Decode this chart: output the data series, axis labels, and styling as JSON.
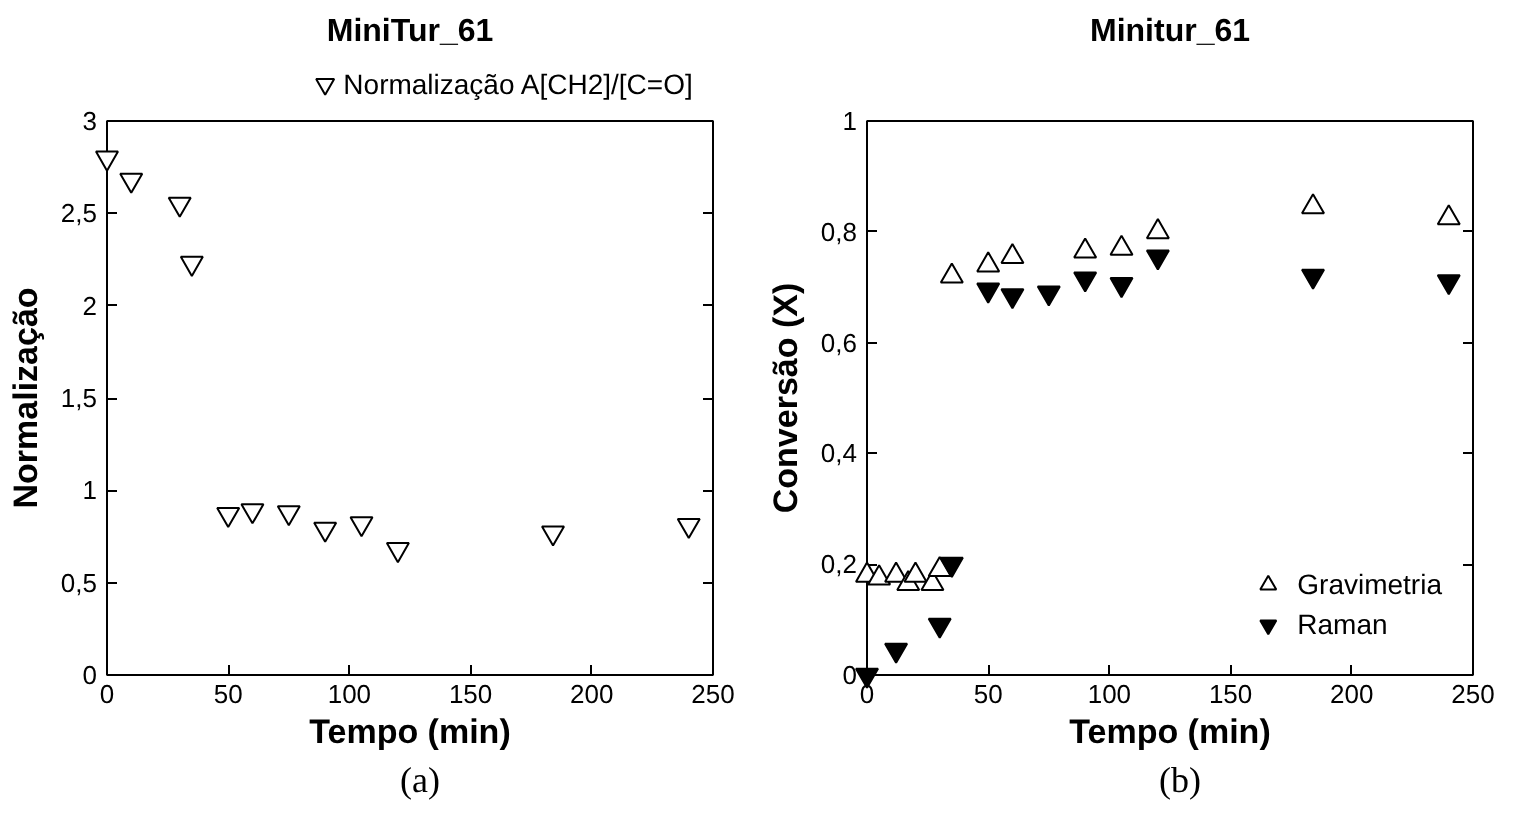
{
  "chart_data": [
    {
      "type": "scatter",
      "title": "MiniTur_61",
      "xlabel": "Tempo (min)",
      "ylabel": "Normalização",
      "annotations": [
        "(a)"
      ],
      "xlim": [
        0,
        250
      ],
      "xticks": [
        0,
        50,
        100,
        150,
        200,
        250
      ],
      "ylim": [
        0,
        3
      ],
      "yticks": [
        {
          "value": 0,
          "label": "0"
        },
        {
          "value": 0.5,
          "label": "0,5"
        },
        {
          "value": 1,
          "label": "1"
        },
        {
          "value": 1.5,
          "label": "1,5"
        },
        {
          "value": 2,
          "label": "2"
        },
        {
          "value": 2.5,
          "label": "2,5"
        },
        {
          "value": 3,
          "label": "3"
        }
      ],
      "grid": false,
      "legend": "top",
      "series": [
        {
          "name": "Normalização A[CH2]/[C=O]",
          "color": "#000000",
          "marker": "triangle_down_open",
          "x": [
            0,
            10,
            30,
            35,
            50,
            60,
            75,
            90,
            105,
            120,
            184,
            240
          ],
          "values": [
            2.8,
            2.68,
            2.55,
            2.23,
            0.87,
            0.89,
            0.88,
            0.79,
            0.82,
            0.68,
            0.77,
            0.81
          ]
        }
      ]
    },
    {
      "type": "scatter",
      "title": "Minitur_61",
      "xlabel": "Tempo (min)",
      "ylabel": "Conversão (X)",
      "annotations": [
        "(b)"
      ],
      "xlim": [
        0,
        250
      ],
      "xticks": [
        0,
        50,
        100,
        150,
        200,
        250
      ],
      "ylim": [
        0,
        1
      ],
      "yticks": [
        {
          "value": 0,
          "label": "0"
        },
        {
          "value": 0.2,
          "label": "0,2"
        },
        {
          "value": 0.4,
          "label": "0,4"
        },
        {
          "value": 0.6,
          "label": "0,6"
        },
        {
          "value": 0.8,
          "label": "0,8"
        },
        {
          "value": 1,
          "label": "1"
        }
      ],
      "grid": false,
      "legend": "bottom right",
      "series": [
        {
          "name": "Gravimetria",
          "color": "#000000",
          "marker": "triangle_open",
          "x": [
            0,
            5,
            12,
            17,
            20,
            27,
            30,
            35,
            50,
            60,
            90,
            105,
            120,
            184,
            240
          ],
          "values": [
            0.18,
            0.175,
            0.18,
            0.165,
            0.18,
            0.165,
            0.19,
            0.72,
            0.74,
            0.755,
            0.765,
            0.77,
            0.8,
            0.845,
            0.825
          ]
        },
        {
          "name": "Raman",
          "color": "#000000",
          "marker": "triangle_down",
          "x": [
            0,
            12,
            30,
            35,
            50,
            60,
            75,
            90,
            105,
            120,
            184,
            240
          ],
          "values": [
            0,
            0.045,
            0.09,
            0.2,
            0.695,
            0.685,
            0.69,
            0.715,
            0.705,
            0.755,
            0.72,
            0.71
          ]
        }
      ]
    }
  ]
}
